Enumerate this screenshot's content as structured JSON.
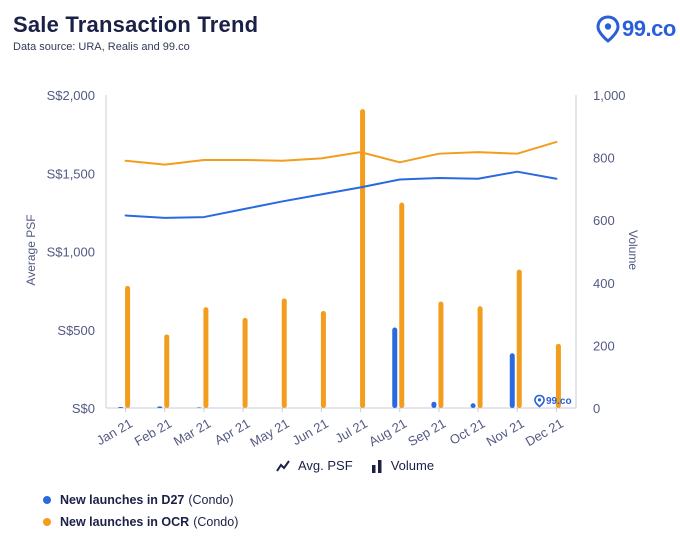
{
  "header": {
    "title": "Sale Transaction  Trend",
    "subtitle": "Data source: URA, Realis and 99.co",
    "logo_text": "99.co"
  },
  "watermark_text": "99.co",
  "legend": {
    "series": [
      {
        "label": "New launches in D27",
        "qualifier": "(Condo)",
        "color": "#2a6ae0"
      },
      {
        "label": "New launches in OCR",
        "qualifier": "(Condo)",
        "color": "#f29d1d"
      }
    ],
    "chart_items": [
      {
        "label": "Avg. PSF",
        "icon": "line-chart-icon"
      },
      {
        "label": "Volume",
        "icon": "bar-chart-icon"
      }
    ]
  },
  "chart_data": {
    "type": "bar",
    "title": "Sale Transaction  Trend",
    "subtitle": "Data source: URA, Realis and 99.co",
    "categories": [
      "Jan 21",
      "Feb 21",
      "Mar 21",
      "Apr 21",
      "May 21",
      "Jun 21",
      "Jul 21",
      "Aug 21",
      "Sep 21",
      "Oct 21",
      "Nov 21",
      "Dec 21"
    ],
    "y_left": {
      "label": "Average PSF",
      "range": [
        0,
        2000
      ],
      "ticks": [
        0,
        500,
        1000,
        1500,
        2000
      ],
      "tick_labels": [
        "S$0",
        "S$500",
        "S$1,000",
        "S$1,500",
        "S$2,000"
      ]
    },
    "y_right": {
      "label": "Volume",
      "range": [
        0,
        1000
      ],
      "ticks": [
        0,
        200,
        400,
        600,
        800,
        1000
      ],
      "tick_labels": [
        "0",
        "200",
        "400",
        "600",
        "800",
        "1,000"
      ]
    },
    "grid": false,
    "series": [
      {
        "name": "D27 Avg. PSF",
        "kind": "line",
        "axis": "left",
        "color": "#2a6ae0",
        "values": [
          1230,
          1215,
          1220,
          1270,
          1320,
          1365,
          1410,
          1460,
          1470,
          1465,
          1510,
          1465
        ]
      },
      {
        "name": "OCR Avg. PSF",
        "kind": "line",
        "axis": "left",
        "color": "#f29d1d",
        "values": [
          1580,
          1555,
          1585,
          1585,
          1580,
          1595,
          1635,
          1570,
          1625,
          1635,
          1625,
          1700
        ]
      },
      {
        "name": "D27 Volume",
        "kind": "bar",
        "axis": "right",
        "color": "#2a6ae0",
        "values": [
          3,
          5,
          2,
          0,
          0,
          0,
          0,
          257,
          20,
          15,
          175,
          0
        ]
      },
      {
        "name": "OCR Volume",
        "kind": "bar",
        "axis": "right",
        "color": "#f29d1d",
        "values": [
          390,
          235,
          322,
          288,
          350,
          310,
          955,
          656,
          340,
          325,
          442,
          205
        ]
      }
    ]
  }
}
